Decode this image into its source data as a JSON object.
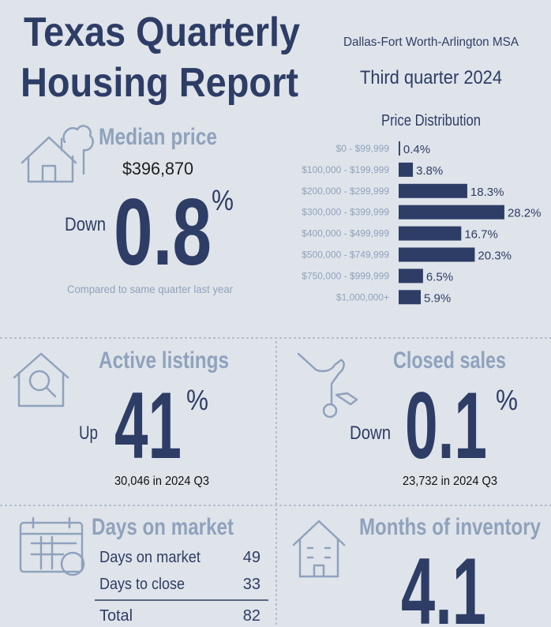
{
  "header": {
    "title_line1": "Texas Quarterly",
    "title_line2": "Housing Report",
    "region": "Dallas-Fort Worth-Arlington MSA",
    "period": "Third quarter 2024"
  },
  "chart_data": {
    "type": "bar",
    "title": "Price Distribution",
    "categories": [
      "$0 - $99,999",
      "$100,000 - $199,999",
      "$200,000 - $299,999",
      "$300,000 - $399,999",
      "$400,000 - $499,999",
      "$500,000 - $749,999",
      "$750,000 - $999,999",
      "$1,000,000+"
    ],
    "values": [
      0.4,
      3.8,
      18.3,
      28.2,
      16.7,
      20.3,
      6.5,
      5.9
    ],
    "value_labels": [
      "0.4%",
      "3.8%",
      "18.3%",
      "28.2%",
      "16.7%",
      "20.3%",
      "6.5%",
      "5.9%"
    ],
    "color": "#2e3d66"
  },
  "median_price": {
    "heading": "Median price",
    "price": "$396,870",
    "direction": "Down",
    "change": "0.8",
    "unit": "%",
    "note": "Compared to same quarter last year"
  },
  "active_listings": {
    "heading": "Active listings",
    "direction": "Up",
    "change": "41",
    "unit": "%",
    "detail": "30,046 in 2024 Q3"
  },
  "closed_sales": {
    "heading": "Closed sales",
    "direction": "Down",
    "change": "0.1",
    "unit": "%",
    "detail": "23,732 in 2024 Q3"
  },
  "days_on_market": {
    "heading": "Days on market",
    "rows": [
      [
        "Days on market",
        "49"
      ],
      [
        "Days to close",
        "33"
      ]
    ],
    "total": [
      "Total",
      "82"
    ]
  },
  "months_of_inventory": {
    "heading": "Months of inventory",
    "value": "4.1"
  }
}
